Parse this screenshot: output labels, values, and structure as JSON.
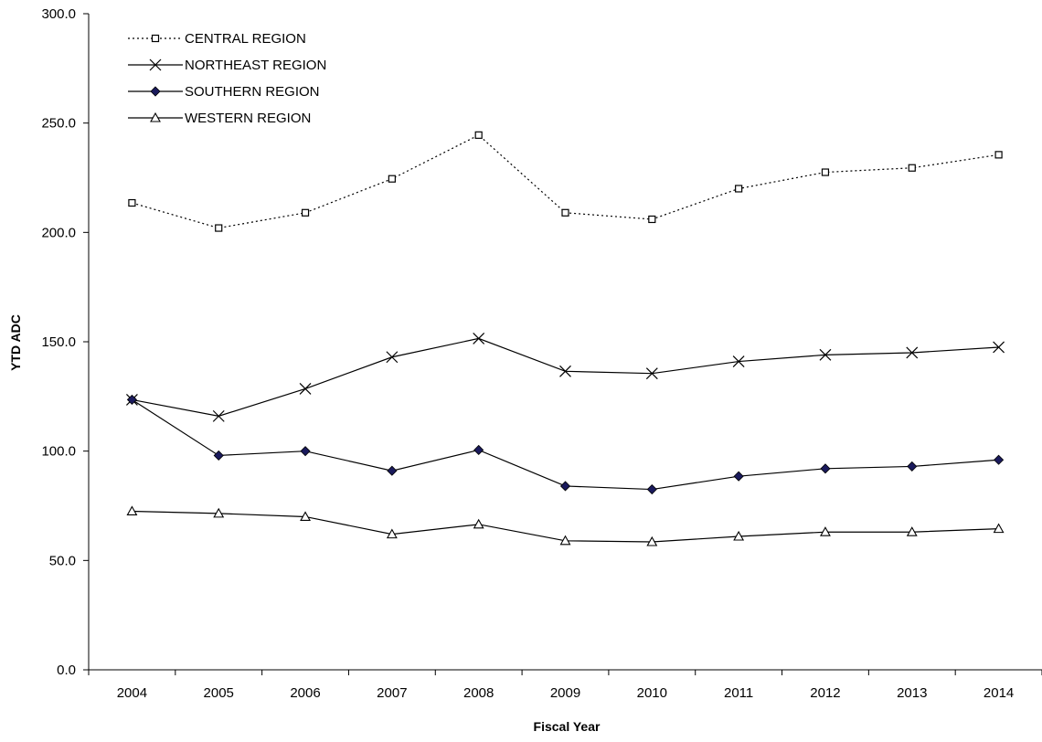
{
  "chart_data": {
    "type": "line",
    "title": "",
    "xlabel": "Fiscal Year",
    "ylabel": "YTD ADC",
    "ylim": [
      0,
      300
    ],
    "yticks": [
      "0.0",
      "50.0",
      "100.0",
      "150.0",
      "200.0",
      "250.0",
      "300.0"
    ],
    "categories": [
      "2004",
      "2005",
      "2006",
      "2007",
      "2008",
      "2009",
      "2010",
      "2011",
      "2012",
      "2013",
      "2014"
    ],
    "grid": false,
    "legend_position": "top-left",
    "series": [
      {
        "name": "CENTRAL REGION",
        "marker": "open-square",
        "line_style": "dotted",
        "color": "#000000",
        "values": [
          213.5,
          202.0,
          209.0,
          224.5,
          244.5,
          209.0,
          206.0,
          220.0,
          227.5,
          229.5,
          235.5
        ]
      },
      {
        "name": "NORTHEAST REGION",
        "marker": "x",
        "line_style": "solid",
        "color": "#000000",
        "values": [
          123.5,
          116.0,
          128.5,
          143.0,
          151.5,
          136.5,
          135.5,
          141.0,
          144.0,
          145.0,
          147.5
        ]
      },
      {
        "name": "SOUTHERN REGION",
        "marker": "filled-diamond",
        "line_style": "solid",
        "color": "#000000",
        "marker_fill": "#1a1a5c",
        "values": [
          123.5,
          98.0,
          100.0,
          91.0,
          100.5,
          84.0,
          82.5,
          88.5,
          92.0,
          93.0,
          96.0
        ]
      },
      {
        "name": "WESTERN REGION",
        "marker": "open-triangle",
        "line_style": "solid",
        "color": "#000000",
        "values": [
          72.5,
          71.5,
          70.0,
          62.0,
          66.5,
          59.0,
          58.5,
          61.0,
          63.0,
          63.0,
          64.5
        ]
      }
    ]
  }
}
